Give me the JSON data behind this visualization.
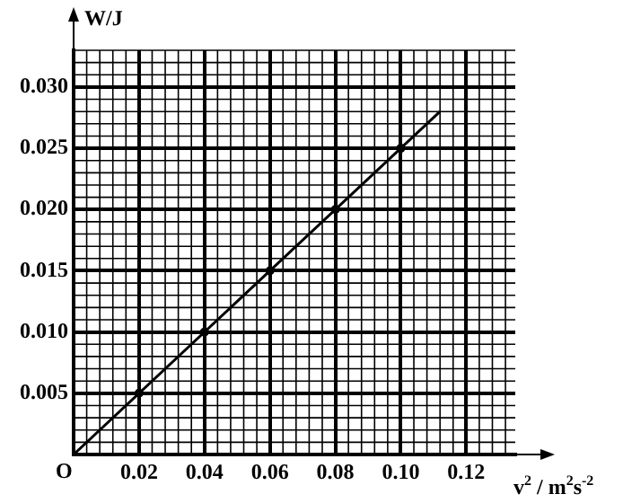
{
  "chart_data": {
    "type": "scatter",
    "xlabel": "v$^{2}$ / m$^{2}$s$^{-2}$",
    "ylabel": "W/J",
    "annotations": [
      "O"
    ],
    "xlim": [
      0,
      0.135
    ],
    "ylim": [
      0,
      0.033
    ],
    "xticks": [
      0.02,
      0.04,
      0.06,
      {
        "value": 0.08,
        "label": "0.08"
      },
      {
        "value": 0.1,
        "label": "0.10"
      },
      0.12
    ],
    "yticks": [
      0.005,
      {
        "value": 0.01,
        "label": "0.010"
      },
      0.015,
      {
        "value": 0.02,
        "label": "0.020"
      },
      0.025,
      {
        "value": 0.03,
        "label": "0.030"
      }
    ],
    "grid": true,
    "marker": "circle",
    "line_style": "solid",
    "series": [
      {
        "type": "line",
        "color": "#000000",
        "x": [
          0,
          0.112
        ],
        "values": [
          0,
          0.028
        ],
        "marker": "none"
      },
      {
        "type": "scatter",
        "color": "#000000",
        "x": [
          0.02,
          0.04,
          0.06,
          0.08,
          0.1
        ],
        "values": [
          0.005,
          0.01,
          0.015,
          0.02,
          0.025
        ]
      }
    ]
  }
}
